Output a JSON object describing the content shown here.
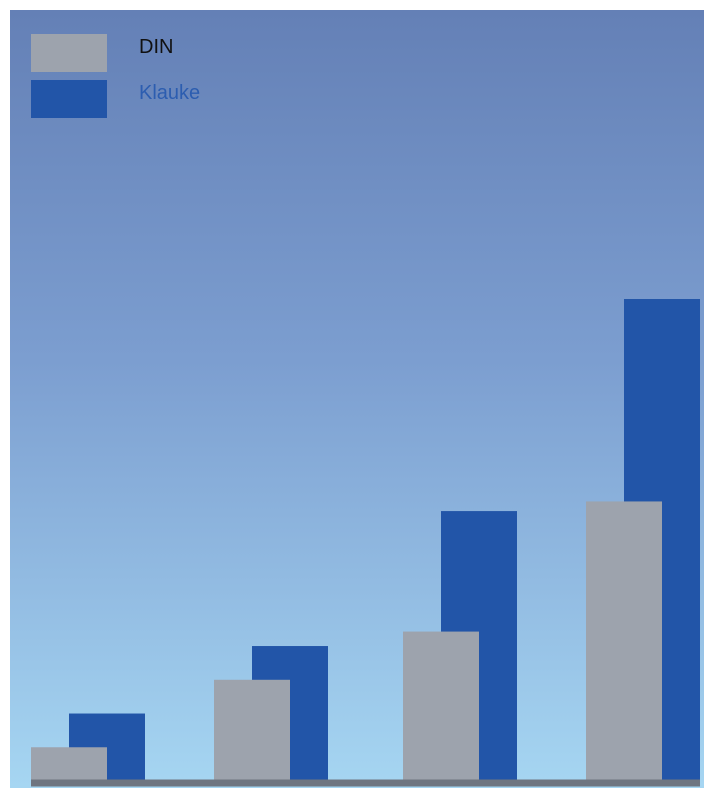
{
  "chart_data": {
    "type": "bar",
    "title": "",
    "xlabel": "",
    "ylabel": "",
    "categories": [
      "",
      "",
      "",
      ""
    ],
    "ylim": [
      0,
      100
    ],
    "grid": false,
    "legend_placement": "top-left",
    "series": [
      {
        "name": "DIN",
        "color": "#9da3ad",
        "values": [
          7,
          21,
          31,
          58
        ]
      },
      {
        "name": "Klauke",
        "color": "#2255a8",
        "label_color": "#2c5db0",
        "values": [
          14,
          28,
          56,
          100
        ]
      }
    ]
  },
  "colors": {
    "axis": "#6f7580",
    "label_din": "#111111"
  }
}
